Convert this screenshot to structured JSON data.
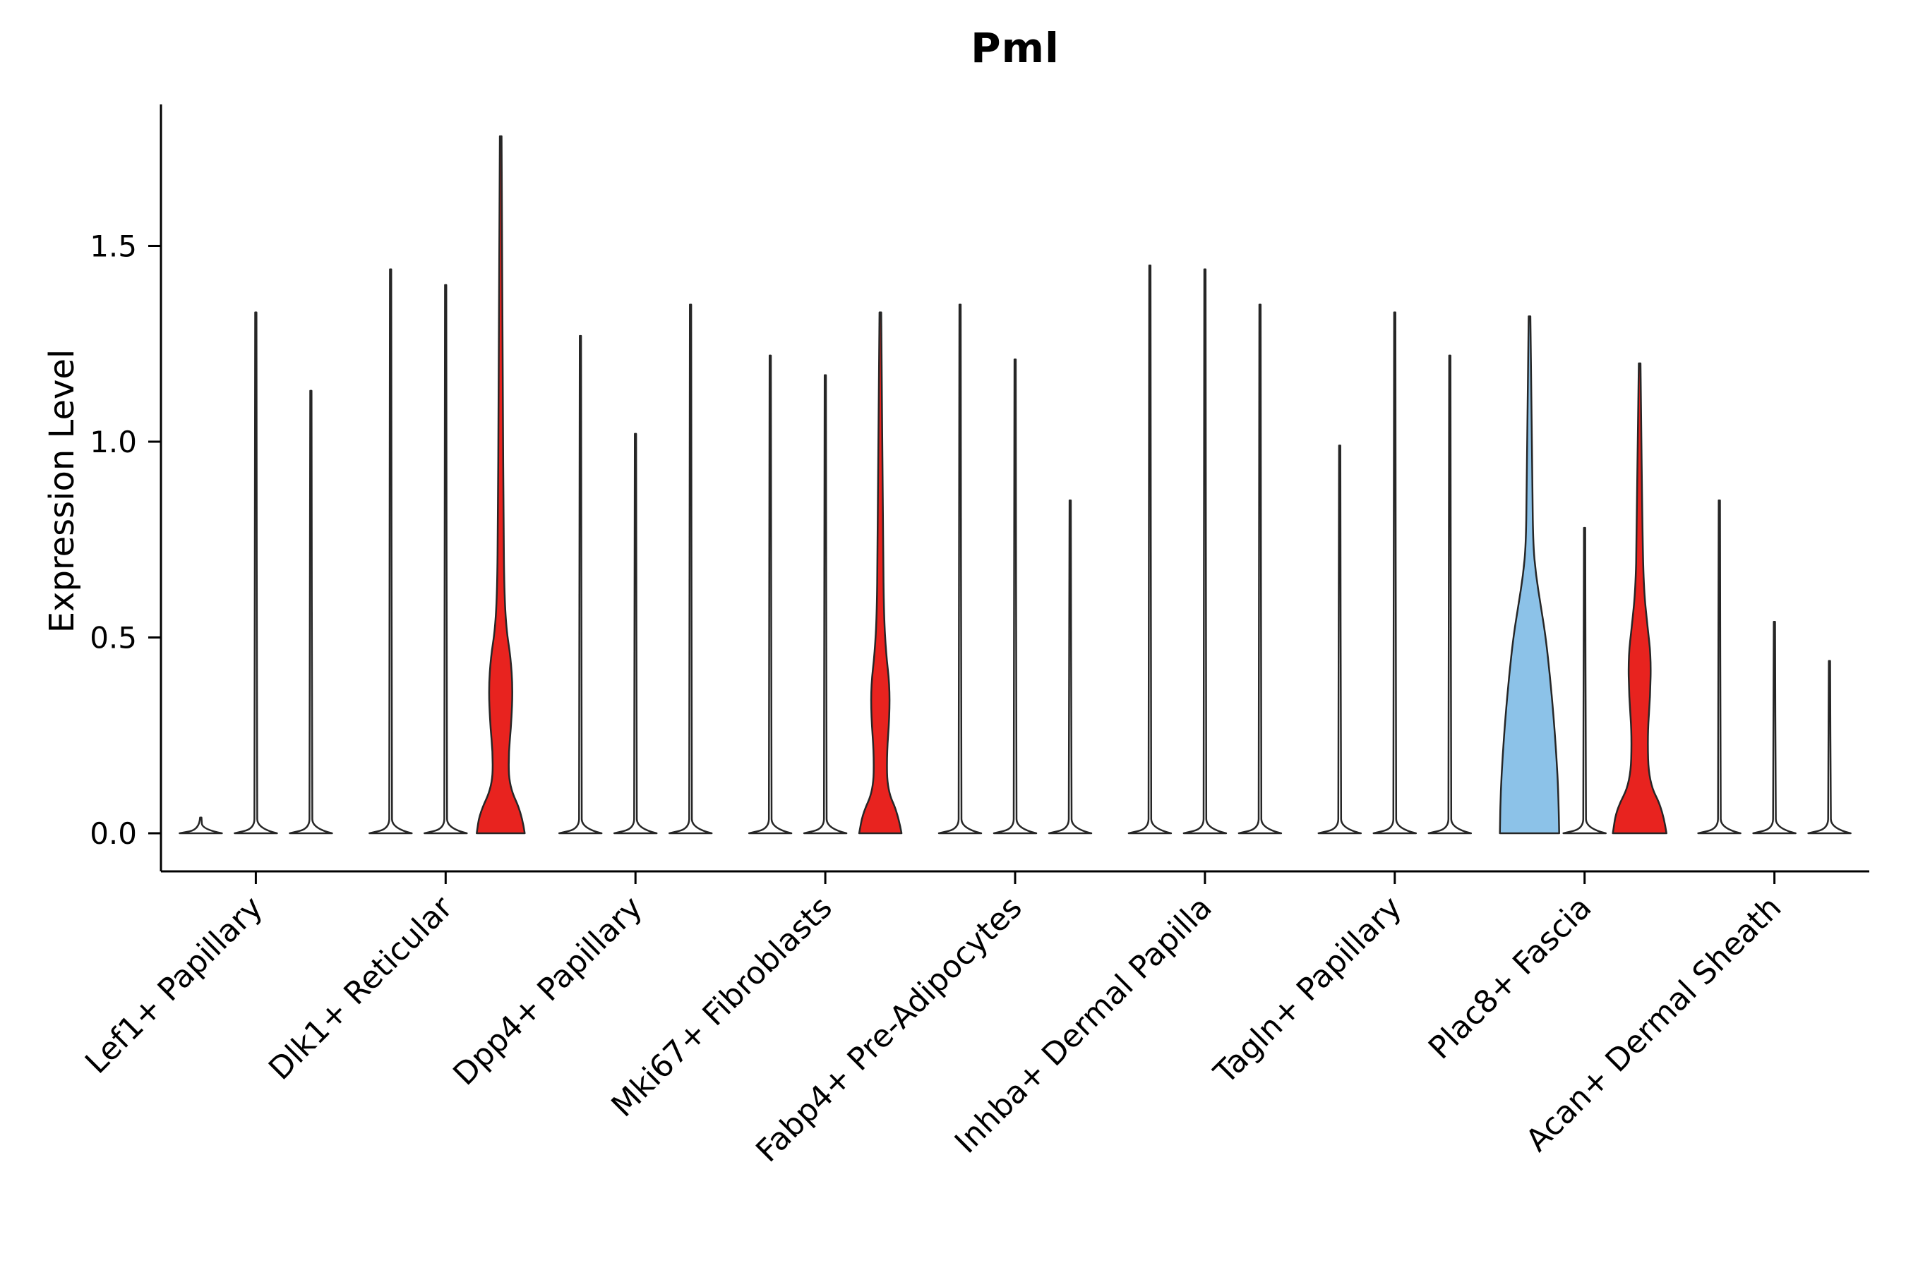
{
  "chart_data": {
    "type": "violin",
    "title": "Pml",
    "xlabel": "",
    "ylabel": "Expression Level",
    "yticks": [
      "0.0",
      "0.5",
      "1.0",
      "1.5"
    ],
    "ytick_values": [
      0,
      0.5,
      1.0,
      1.5
    ],
    "ylim": [
      -0.1,
      1.88
    ],
    "grid": false,
    "violins_per_category": 3,
    "categories": [
      "Lef1+ Papillary",
      "Dlk1+ Reticular",
      "Dpp4+ Papillary",
      "Mki67+ Fibroblasts",
      "Fabp4+ Pre-Adipocytes",
      "Inhba+ Dermal Papilla",
      "Tagln+ Papillary",
      "Plac8+ Fascia",
      "Acan+ Dermal Sheath"
    ],
    "groups": [
      {
        "label": "Lef1+ Papillary",
        "violins": [
          {
            "max": 0.04,
            "fill": "white",
            "profile": [
              [
                0,
                30
              ],
              [
                0.01,
                2
              ],
              [
                0.04,
                1
              ]
            ]
          },
          {
            "max": 1.33,
            "fill": "white"
          },
          {
            "max": 1.13,
            "fill": "white"
          }
        ]
      },
      {
        "label": "Dlk1+ Reticular",
        "violins": [
          {
            "max": 1.44,
            "fill": "white"
          },
          {
            "max": 1.4,
            "fill": "white"
          },
          {
            "max": 1.78,
            "fill": "red",
            "profile": [
              [
                0,
                34
              ],
              [
                0.05,
                30
              ],
              [
                0.12,
                12
              ],
              [
                0.2,
                11
              ],
              [
                0.28,
                15
              ],
              [
                0.37,
                17
              ],
              [
                0.45,
                14
              ],
              [
                0.52,
                8
              ],
              [
                0.62,
                5
              ],
              [
                0.8,
                4
              ],
              [
                1.1,
                3
              ],
              [
                1.78,
                1.2
              ]
            ]
          }
        ]
      },
      {
        "label": "Dpp4+ Papillary",
        "violins": [
          {
            "max": 1.27,
            "fill": "white"
          },
          {
            "max": 1.02,
            "fill": "white"
          },
          {
            "max": 1.35,
            "fill": "white"
          }
        ]
      },
      {
        "label": "Mki67+ Fibroblasts",
        "violins": [
          {
            "max": 1.22,
            "fill": "white"
          },
          {
            "max": 1.17,
            "fill": "white"
          },
          {
            "max": 1.33,
            "fill": "red",
            "profile": [
              [
                0,
                30
              ],
              [
                0.05,
                25
              ],
              [
                0.11,
                10
              ],
              [
                0.2,
                9
              ],
              [
                0.3,
                13
              ],
              [
                0.38,
                13
              ],
              [
                0.46,
                8
              ],
              [
                0.56,
                5
              ],
              [
                0.72,
                4
              ],
              [
                1.33,
                1.2
              ]
            ]
          }
        ]
      },
      {
        "label": "Fabp4+ Pre-Adipocytes",
        "violins": [
          {
            "max": 1.35,
            "fill": "white"
          },
          {
            "max": 1.21,
            "fill": "white"
          },
          {
            "max": 0.85,
            "fill": "white"
          }
        ]
      },
      {
        "label": "Inhba+ Dermal Papilla",
        "violins": [
          {
            "max": 1.45,
            "fill": "white"
          },
          {
            "max": 1.44,
            "fill": "white"
          },
          {
            "max": 1.35,
            "fill": "white"
          }
        ]
      },
      {
        "label": "Tagln+ Papillary",
        "violins": [
          {
            "max": 0.99,
            "fill": "white"
          },
          {
            "max": 1.33,
            "fill": "white"
          },
          {
            "max": 1.22,
            "fill": "white"
          }
        ]
      },
      {
        "label": "Plac8+ Fascia",
        "violins": [
          {
            "max": 1.32,
            "fill": "blue",
            "profile": [
              [
                0,
                42
              ],
              [
                0.1,
                41
              ],
              [
                0.2,
                38
              ],
              [
                0.3,
                34
              ],
              [
                0.4,
                29
              ],
              [
                0.5,
                23
              ],
              [
                0.58,
                16
              ],
              [
                0.66,
                9
              ],
              [
                0.74,
                5
              ],
              [
                0.9,
                4
              ],
              [
                1.32,
                1.2
              ]
            ]
          },
          {
            "max": 0.78,
            "fill": "white"
          },
          {
            "max": 1.2,
            "fill": "red",
            "profile": [
              [
                0,
                38
              ],
              [
                0.06,
                33
              ],
              [
                0.13,
                13
              ],
              [
                0.25,
                11
              ],
              [
                0.35,
                15
              ],
              [
                0.45,
                16
              ],
              [
                0.53,
                11
              ],
              [
                0.62,
                6
              ],
              [
                0.76,
                4
              ],
              [
                1.2,
                1.2
              ]
            ]
          }
        ]
      },
      {
        "label": "Acan+ Dermal Sheath",
        "violins": [
          {
            "max": 0.85,
            "fill": "white"
          },
          {
            "max": 0.54,
            "fill": "white"
          },
          {
            "max": 0.44,
            "fill": "white"
          }
        ]
      }
    ],
    "colors": {
      "white": "#ffffff",
      "red": "#e8231f",
      "blue": "#8cc2e8",
      "stroke": "#262626",
      "axis": "#000000"
    }
  }
}
